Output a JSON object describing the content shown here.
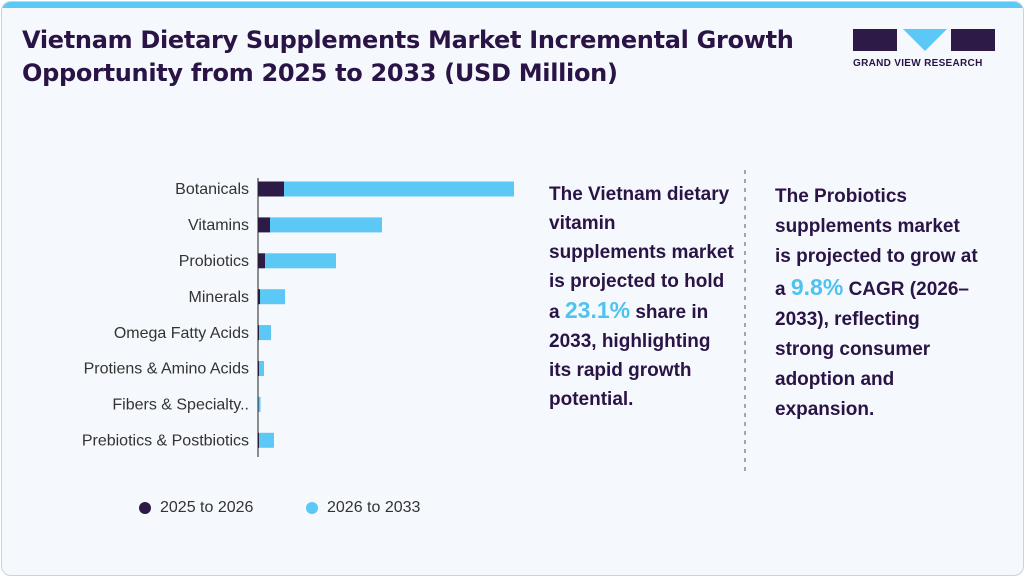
{
  "header": {
    "title": "Vietnam Dietary Supplements Market Incremental Growth Opportunity from 2025 to 2033 (USD Million)",
    "brand": "GRAND VIEW RESEARCH"
  },
  "chart_data": {
    "type": "stacked-hbar",
    "categories": [
      "Botanicals",
      "Vitamins",
      "Probiotics",
      "Minerals",
      "Omega Fatty Acids",
      "Protiens & Amino Acids",
      "Fibers & Specialty..",
      "Prebiotics & Postbiotics"
    ],
    "series": [
      {
        "name": "2025 to 2026",
        "color": "#2e1a47",
        "values": [
          26,
          12,
          7,
          2,
          1,
          1,
          0.5,
          1
        ]
      },
      {
        "name": "2026 to 2033",
        "color": "#5bc8f5",
        "values": [
          230,
          112,
          71,
          25,
          12,
          5,
          2,
          15
        ]
      }
    ],
    "xlim": [
      0,
      256
    ]
  },
  "callouts": [
    {
      "before": "The Vietnam dietary vitamin supplements market is projected to hold a",
      "highlight": "23.1%",
      "after": "share in 2033, highlighting its rapid growth potential."
    },
    {
      "before": "The Probiotics supplements market is projected to grow at a",
      "highlight": "9.8%",
      "after": "CAGR (2026–2033), reflecting strong consumer adoption and expansion."
    }
  ]
}
